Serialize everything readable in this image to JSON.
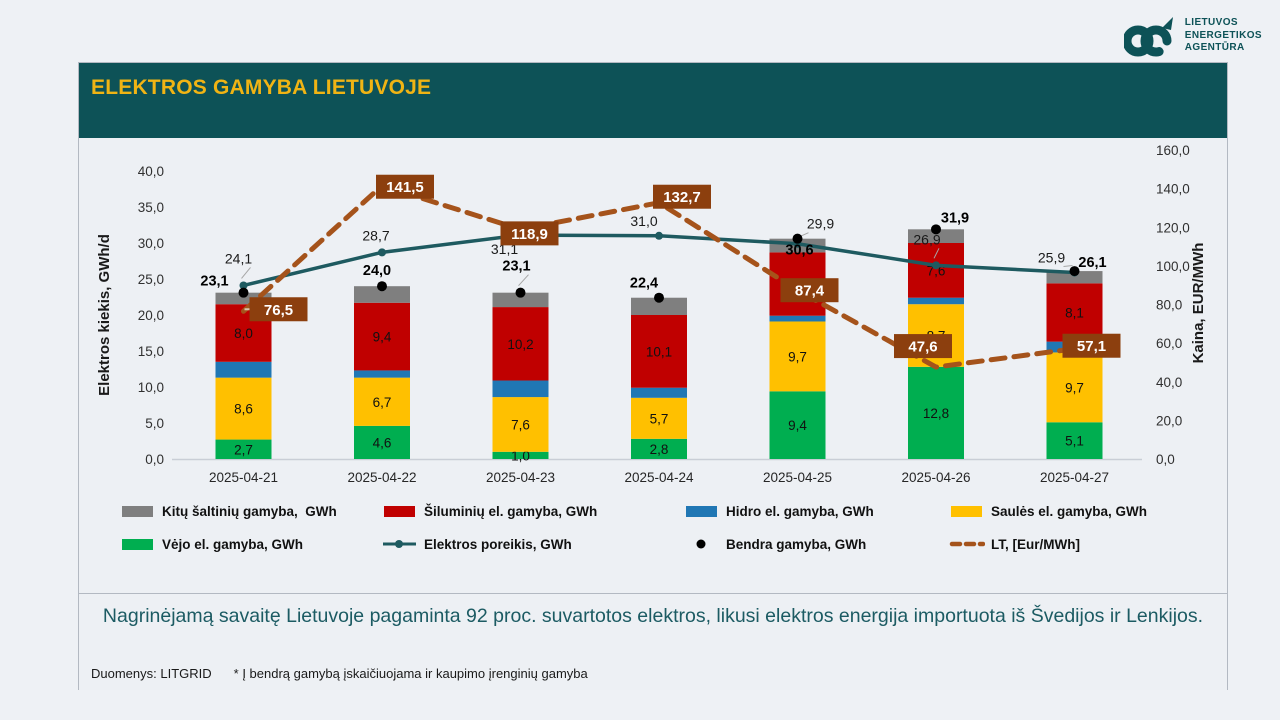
{
  "logo": {
    "line1": "LIETUVOS",
    "line2": "ENERGETIKOS",
    "line3": "AGENTŪRA"
  },
  "header": {
    "title": "ELEKTROS GAMYBA LIETUVOJE"
  },
  "colors": {
    "header_bg": "#0d5257",
    "title_gold": "#f0b414",
    "wind_green": "#00ae50",
    "solar_yellow": "#ffc000",
    "hydro_blue": "#2077b4",
    "thermal_red": "#c00000",
    "other_gray": "#7f7f7f",
    "demand_teal": "#1e5a60",
    "price_brown": "#a5531b",
    "price_box": "#8c3f0e",
    "total_black": "#000000"
  },
  "chart_data": {
    "type": "combo-stacked-bar-line",
    "categories": [
      "2025-04-21",
      "2025-04-22",
      "2025-04-23",
      "2025-04-24",
      "2025-04-25",
      "2025-04-26",
      "2025-04-27"
    ],
    "bar_series": [
      {
        "name": "Vėjo el. gamyba, GWh",
        "color": "#00ae50",
        "show_labels": true,
        "values": [
          2.7,
          4.6,
          1.0,
          2.8,
          9.4,
          12.8,
          5.1
        ]
      },
      {
        "name": "Saulės el. gamyba, GWh",
        "color": "#ffc000",
        "show_labels": true,
        "values": [
          8.6,
          6.7,
          7.6,
          5.7,
          9.7,
          8.7,
          9.7
        ]
      },
      {
        "name": "Hidro el. gamyba, GWh",
        "color": "#2077b4",
        "show_labels": false,
        "values": [
          2.2,
          1.0,
          2.3,
          1.4,
          0.8,
          0.9,
          1.5
        ]
      },
      {
        "name": "Šiluminių el. gamyba, GWh",
        "color": "#c00000",
        "show_labels": true,
        "values": [
          8.0,
          9.4,
          10.2,
          10.1,
          8.8,
          7.6,
          8.1
        ]
      },
      {
        "name": "Kitų šaltinių gamyba, GWh",
        "color": "#7f7f7f",
        "show_labels": false,
        "values": [
          1.6,
          2.3,
          2.0,
          2.4,
          1.9,
          1.9,
          1.7
        ]
      }
    ],
    "line_series": [
      {
        "name": "Elektros poreikis, GWh",
        "kind": "line",
        "axis": "left",
        "color": "#1e5a60",
        "values": [
          24.1,
          28.7,
          31.1,
          31.0,
          29.9,
          26.9,
          25.9
        ]
      },
      {
        "name": "Bendra gamyba, GWh",
        "kind": "points",
        "axis": "left",
        "color": "#000000",
        "values": [
          23.1,
          24.0,
          23.1,
          22.4,
          30.6,
          31.9,
          26.1
        ]
      },
      {
        "name": "LT, [Eur/MWh]",
        "kind": "dashed",
        "axis": "right",
        "color": "#a5531b",
        "box_fill": "#8c3f0e",
        "values": [
          76.5,
          141.5,
          118.9,
          132.7,
          87.4,
          47.6,
          57.1
        ]
      }
    ],
    "left_axis": {
      "title": "Elektros kiekis, GWh/d",
      "min": 0,
      "max": 40,
      "step": 5
    },
    "right_axis": {
      "title": "Kaina, EUR/MWh",
      "min": 0,
      "max": 160,
      "step": 20
    },
    "grid": false,
    "legend_position": "bottom"
  },
  "legend": {
    "items": [
      {
        "label": "Kitų šaltinių gamyba,  GWh",
        "swatch": "rect",
        "color": "#7f7f7f"
      },
      {
        "label": "Šiluminių el. gamyba, GWh",
        "swatch": "rect",
        "color": "#c00000"
      },
      {
        "label": "Hidro el. gamyba, GWh",
        "swatch": "rect",
        "color": "#2077b4"
      },
      {
        "label": "Saulės el. gamyba, GWh",
        "swatch": "rect",
        "color": "#ffc000"
      },
      {
        "label": "Vėjo el. gamyba, GWh",
        "swatch": "rect",
        "color": "#00ae50"
      },
      {
        "label": "Elektros poreikis, GWh",
        "swatch": "line",
        "color": "#1e5a60"
      },
      {
        "label": "Bendra gamyba, GWh",
        "swatch": "dot",
        "color": "#000000"
      },
      {
        "label": "LT, [Eur/MWh]",
        "swatch": "dash",
        "color": "#a5531b"
      }
    ]
  },
  "summary": {
    "text": "Nagrinėjamą savaitę Lietuvoje pagaminta 92 proc. suvartotos elektros, likusi elektros energija importuota iš Švedijos ir Lenkijos."
  },
  "footer": {
    "source": "Duomenys: LITGRID",
    "note": "* Į bendrą gamybą įskaičiuojama ir kaupimo įrenginių gamyba"
  }
}
